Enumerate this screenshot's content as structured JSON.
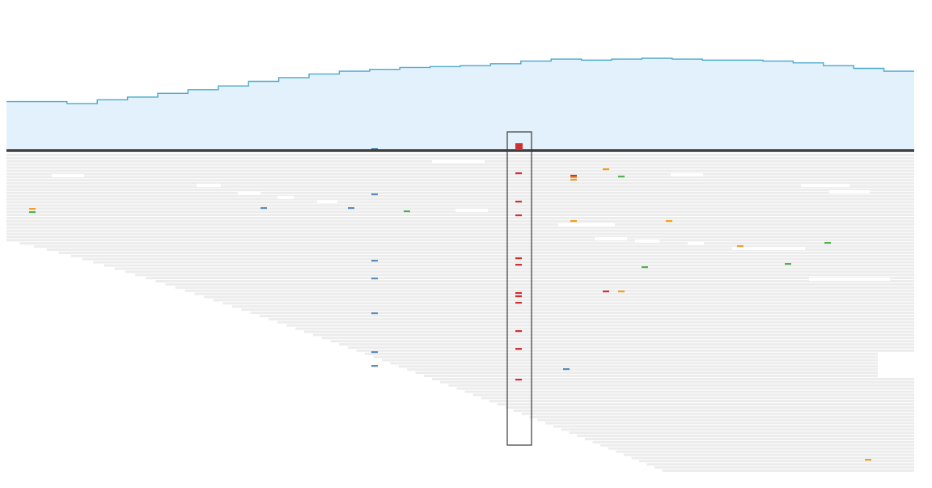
{
  "colors": {
    "background": "#ffffff",
    "coverage_fill": "#e2f1fb",
    "coverage_line": "#4aa9cf",
    "read": "#ececec",
    "read_gap": "#ffffff",
    "baseline": "#3e3e3e",
    "highlight_box": "#3a3a3a",
    "variant_A": "#d23030",
    "variant_C": "#5b8bb8",
    "variant_G": "#f0a020",
    "variant_T": "#52b052"
  },
  "icons": {
    "selected_column": "highlight-box",
    "variant_mark": "variant-tick"
  },
  "coverage": {
    "values": [
      0.53,
      0.53,
      0.51,
      0.55,
      0.58,
      0.62,
      0.66,
      0.7,
      0.75,
      0.79,
      0.83,
      0.86,
      0.88,
      0.9,
      0.91,
      0.92,
      0.94,
      0.97,
      0.99,
      0.98,
      0.99,
      1.0,
      0.99,
      0.98,
      0.98,
      0.97,
      0.95,
      0.92,
      0.89,
      0.86
    ]
  },
  "selected_column": {
    "mismatch_count": 12,
    "total_reads": 70
  }
}
